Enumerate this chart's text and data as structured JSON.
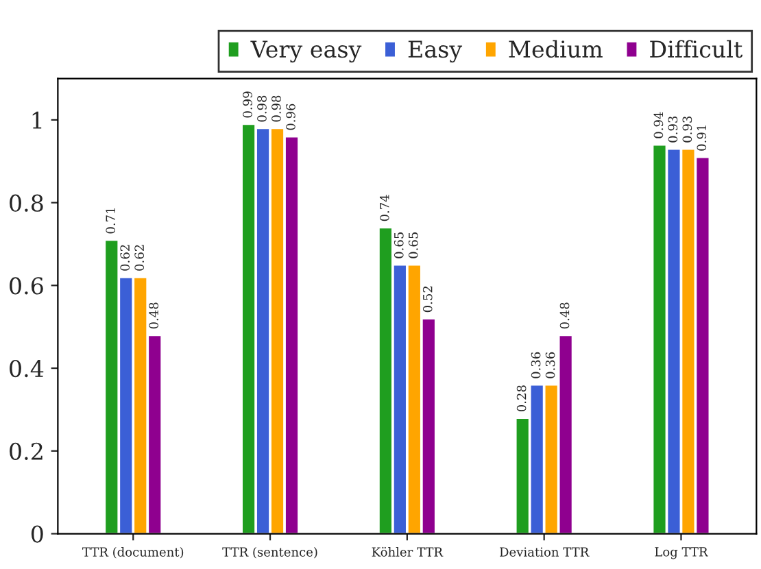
{
  "chart_data": {
    "type": "bar",
    "categories": [
      "TTR (document)",
      "TTR (sentence)",
      "Köhler TTR",
      "Deviation TTR",
      "Log TTR"
    ],
    "series": [
      {
        "name": "Very easy",
        "color": "#1f9e1f",
        "values": [
          0.71,
          0.99,
          0.74,
          0.28,
          0.94
        ]
      },
      {
        "name": "Easy",
        "color": "#3b5fd6",
        "values": [
          0.62,
          0.98,
          0.65,
          0.36,
          0.93
        ]
      },
      {
        "name": "Medium",
        "color": "#ffa500",
        "values": [
          0.62,
          0.98,
          0.65,
          0.36,
          0.93
        ]
      },
      {
        "name": "Difficult",
        "color": "#8f008f",
        "values": [
          0.48,
          0.96,
          0.52,
          0.48,
          0.91
        ]
      }
    ],
    "ylim": [
      0,
      1.1
    ],
    "yticks": [
      0,
      0.2,
      0.4,
      0.6,
      0.8,
      1
    ],
    "data_labels": true,
    "legend": "top",
    "grid": false
  }
}
